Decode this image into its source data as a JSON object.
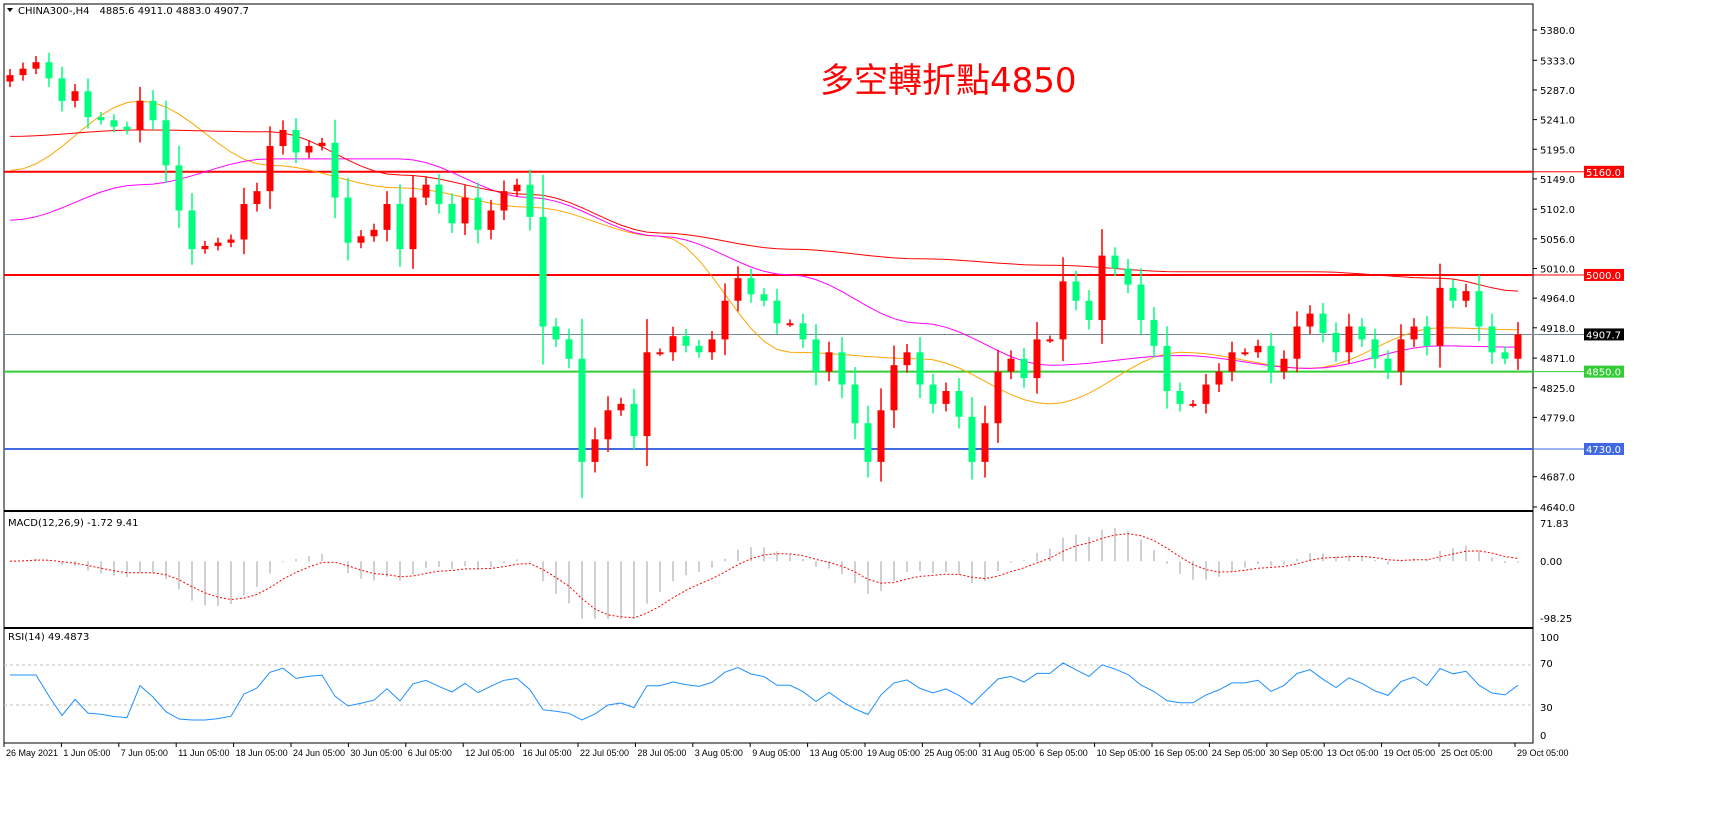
{
  "header": {
    "symbol": "CHINA300-,H4",
    "ohlc": "4885.6 4911.0 4883.0 4907.7"
  },
  "annotation": "多空轉折點4850",
  "chart_data": {
    "type": "candlestick",
    "symbol": "CHINA300-",
    "timeframe": "H4",
    "up_color": "#ff0000",
    "down_color": "#00ff7f",
    "price_axis": {
      "range": [
        4640,
        5380
      ],
      "ticks": [
        5380.0,
        5333.0,
        5287.0,
        5241.0,
        5195.0,
        5149.0,
        5102.0,
        5056.0,
        5010.0,
        4964.0,
        4918.0,
        4871.0,
        4825.0,
        4779.0,
        4687.0,
        4640.0
      ]
    },
    "x_axis_labels": [
      "26 May 2021",
      "1 Jun 05:00",
      "7 Jun 05:00",
      "11 Jun 05:00",
      "18 Jun 05:00",
      "24 Jun 05:00",
      "30 Jun 05:00",
      "6 Jul 05:00",
      "12 Jul 05:00",
      "16 Jul 05:00",
      "22 Jul 05:00",
      "28 Jul 05:00",
      "3 Aug 05:00",
      "9 Aug 05:00",
      "13 Aug 05:00",
      "19 Aug 05:00",
      "25 Aug 05:00",
      "31 Aug 05:00",
      "6 Sep 05:00",
      "10 Sep 05:00",
      "16 Sep 05:00",
      "24 Sep 05:00",
      "30 Sep 05:00",
      "13 Oct 05:00",
      "19 Oct 05:00",
      "25 Oct 05:00",
      "29 Oct 05:00"
    ],
    "first_open": 5300,
    "closes": [
      5310,
      5320,
      5330,
      5305,
      5270,
      5285,
      5245,
      5240,
      5230,
      5225,
      5270,
      5240,
      5170,
      5100,
      5040,
      5045,
      5050,
      5055,
      5110,
      5130,
      5200,
      5225,
      5190,
      5200,
      5205,
      5120,
      5050,
      5060,
      5070,
      5110,
      5040,
      5120,
      5140,
      5110,
      5080,
      5120,
      5070,
      5100,
      5130,
      5140,
      5090,
      4920,
      4900,
      4870,
      4710,
      4745,
      4790,
      4800,
      4750,
      4880,
      4880,
      4905,
      4890,
      4880,
      4900,
      4960,
      4995,
      4970,
      4960,
      4925,
      4925,
      4900,
      4850,
      4880,
      4830,
      4770,
      4710,
      4790,
      4860,
      4880,
      4830,
      4800,
      4820,
      4780,
      4710,
      4770,
      4850,
      4870,
      4840,
      4900,
      4900,
      4990,
      4960,
      4930,
      5030,
      5010,
      4985,
      4930,
      4890,
      4820,
      4800,
      4800,
      4830,
      4850,
      4880,
      4880,
      4890,
      4850,
      4870,
      4920,
      4940,
      4910,
      4880,
      4920,
      4900,
      4870,
      4850,
      4900,
      4920,
      4890,
      4980,
      4960,
      4975,
      4920,
      4880,
      4870,
      4907.7
    ],
    "moving_averages": [
      {
        "color": "#ffa500",
        "points": [
          [
            0,
            5162
          ],
          [
            10,
            5270
          ],
          [
            20,
            5170
          ],
          [
            30,
            5135
          ],
          [
            40,
            5105
          ],
          [
            50,
            5060
          ],
          [
            60,
            4880
          ],
          [
            70,
            4870
          ],
          [
            80,
            4800
          ],
          [
            90,
            4880
          ],
          [
            100,
            4855
          ],
          [
            110,
            4918
          ],
          [
            116,
            4915
          ]
        ]
      },
      {
        "color": "#ff00ff",
        "points": [
          [
            0,
            5085
          ],
          [
            10,
            5140
          ],
          [
            20,
            5180
          ],
          [
            30,
            5180
          ],
          [
            40,
            5120
          ],
          [
            50,
            5060
          ],
          [
            60,
            5000
          ],
          [
            70,
            4925
          ],
          [
            80,
            4860
          ],
          [
            90,
            4875
          ],
          [
            100,
            4855
          ],
          [
            110,
            4890
          ],
          [
            116,
            4888
          ]
        ]
      },
      {
        "color": "#ff0000",
        "points": [
          [
            0,
            5215
          ],
          [
            10,
            5225
          ],
          [
            20,
            5222
          ],
          [
            30,
            5155
          ],
          [
            40,
            5125
          ],
          [
            50,
            5065
          ],
          [
            60,
            5040
          ],
          [
            70,
            5025
          ],
          [
            80,
            5015
          ],
          [
            90,
            5005
          ],
          [
            100,
            5005
          ],
          [
            110,
            4995
          ],
          [
            116,
            4975
          ]
        ]
      }
    ],
    "horizontal_lines": [
      {
        "price": 5160.0,
        "label": "5160.0",
        "color": "#ff0000"
      },
      {
        "price": 5000.0,
        "label": "5000.0",
        "color": "#ff0000"
      },
      {
        "price": 4850.0,
        "label": "4850.0",
        "color": "#32cd32"
      },
      {
        "price": 4730.0,
        "label": "4730.0",
        "color": "#4169e1"
      }
    ],
    "current_price": {
      "price": 4907.7,
      "label": "4907.7",
      "color": "#778899"
    },
    "macd": {
      "label": "MACD(12,26,9) -1.72 9.41",
      "range": [
        -98.25,
        71.83
      ],
      "ticks": [
        "71.83",
        "0.00",
        "-98.25"
      ],
      "histogram_color": "#c0c0c0",
      "signal_color": "#ff0000"
    },
    "rsi": {
      "label": "RSI(14) 49.4873",
      "range": [
        0,
        100
      ],
      "ticks": [
        "100",
        "70",
        "30",
        "0"
      ],
      "levels": [
        70,
        30
      ],
      "color": "#1e90ff"
    }
  }
}
